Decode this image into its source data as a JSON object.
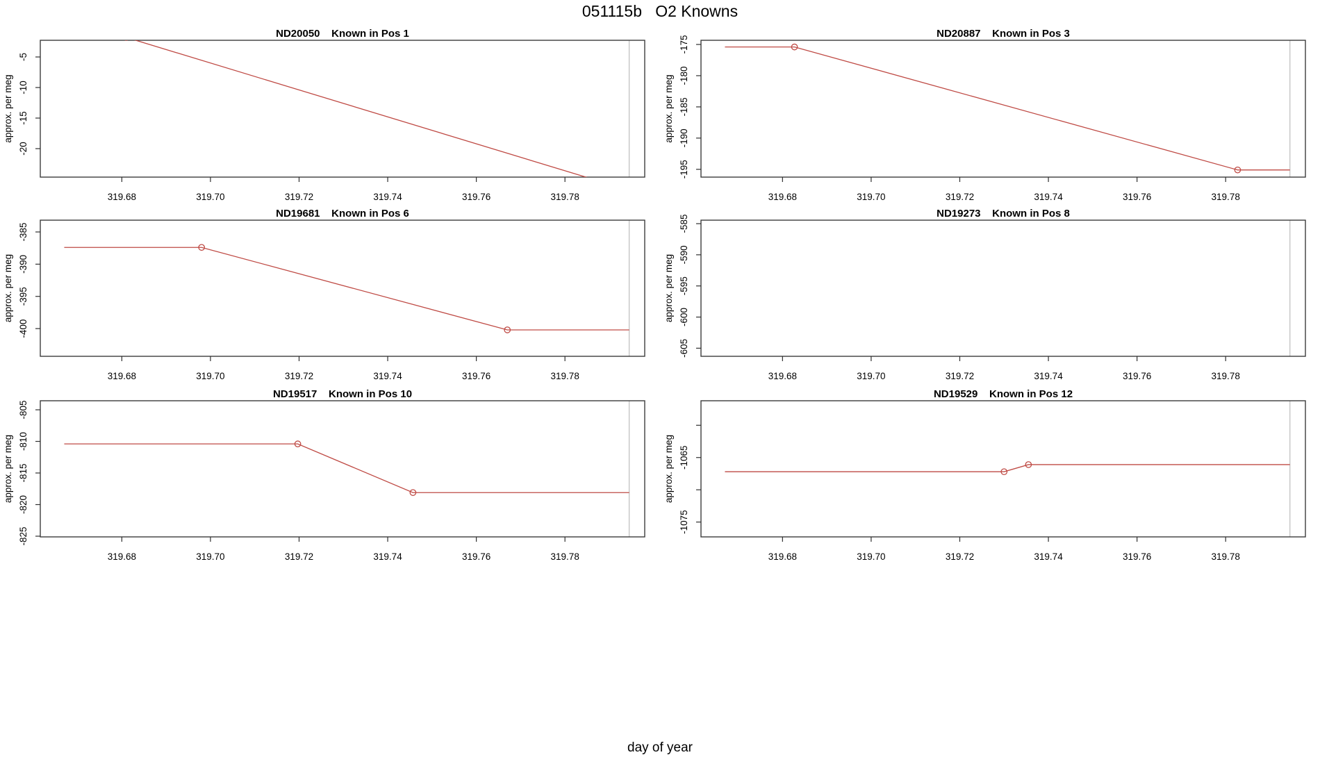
{
  "header": {
    "title": "051115b   O2 Knowns"
  },
  "footer": {
    "xlabel": "day of year"
  },
  "colors": {
    "line": "#bf4a44",
    "marker": "#bf4a44",
    "box": "#3b3b3b",
    "tick": "#2f2f2f",
    "end_line": "#c8c8c8",
    "text": "#000000",
    "background": "#ffffff"
  },
  "chart_data": [
    {
      "type": "line",
      "sample_id": "ND20050",
      "position": "Known in Pos 1",
      "title": "ND20050    Known in Pos 1",
      "ylabel": "approx. per meg",
      "xlim": [
        319.6616,
        319.798
      ],
      "ylim": [
        -24.66,
        -2.27
      ],
      "xticks": [
        319.68,
        319.7,
        319.72,
        319.74,
        319.76,
        319.78
      ],
      "xtick_labels": [
        "319.68",
        "319.70",
        "319.72",
        "319.74",
        "319.76",
        "319.78"
      ],
      "yticks": [
        -5,
        -10,
        -15,
        -20
      ],
      "ytick_labels": [
        "-5",
        "-10",
        "-15",
        "-20"
      ],
      "x": [
        319.667,
        319.681,
        319.789,
        319.7945
      ],
      "y": [
        -1.8,
        -1.8,
        -25.6,
        -25.6
      ],
      "marker_point_indices": [
        1,
        2
      ],
      "end_marker_x": 319.7945
    },
    {
      "type": "line",
      "sample_id": "ND20887",
      "position": "Known in Pos 3",
      "title": "ND20887    Known in Pos 3",
      "ylabel": "approx. per meg",
      "xlim": [
        319.6616,
        319.798
      ],
      "ylim": [
        -196.25,
        -174.33
      ],
      "xticks": [
        319.68,
        319.7,
        319.72,
        319.74,
        319.76,
        319.78
      ],
      "xtick_labels": [
        "319.68",
        "319.70",
        "319.72",
        "319.74",
        "319.76",
        "319.78"
      ],
      "yticks": [
        -175,
        -180,
        -185,
        -190,
        -195
      ],
      "ytick_labels": [
        "-175",
        "-180",
        "-185",
        "-190",
        "-195"
      ],
      "x": [
        319.667,
        319.6827,
        319.7827,
        319.7945
      ],
      "y": [
        -175.4,
        -175.4,
        -195.1,
        -195.1
      ],
      "marker_point_indices": [
        1,
        2
      ],
      "end_marker_x": 319.7945
    },
    {
      "type": "line",
      "sample_id": "ND19681",
      "position": "Known in Pos 6",
      "title": "ND19681    Known in Pos 6",
      "ylabel": "approx. per meg",
      "xlim": [
        319.6616,
        319.798
      ],
      "ylim": [
        -404.3,
        -383.17
      ],
      "xticks": [
        319.68,
        319.7,
        319.72,
        319.74,
        319.76,
        319.78
      ],
      "xtick_labels": [
        "319.68",
        "319.70",
        "319.72",
        "319.74",
        "319.76",
        "319.78"
      ],
      "yticks": [
        -385,
        -390,
        -395,
        -400
      ],
      "ytick_labels": [
        "-385",
        "-390",
        "-395",
        "-400"
      ],
      "x": [
        319.667,
        319.698,
        319.767,
        319.7945
      ],
      "y": [
        -387.4,
        -387.4,
        -400.2,
        -400.2
      ],
      "marker_point_indices": [
        1,
        2
      ],
      "end_marker_x": 319.7945
    },
    {
      "type": "line",
      "sample_id": "ND19273",
      "position": "Known in Pos 8",
      "title": "ND19273    Known in Pos 8",
      "ylabel": "approx. per meg",
      "xlim": [
        319.6616,
        319.798
      ],
      "ylim": [
        -606.3,
        -584.44
      ],
      "xticks": [
        319.68,
        319.7,
        319.72,
        319.74,
        319.76,
        319.78
      ],
      "xtick_labels": [
        "319.68",
        "319.70",
        "319.72",
        "319.74",
        "319.76",
        "319.78"
      ],
      "yticks": [
        -585,
        -590,
        -595,
        -600,
        -605
      ],
      "ytick_labels": [
        "-585",
        "-590",
        "-595",
        "-600",
        "-605"
      ],
      "x": [],
      "y": [],
      "marker_point_indices": [],
      "end_marker_x": 319.7945
    },
    {
      "type": "line",
      "sample_id": "ND19517",
      "position": "Known in Pos 10",
      "title": "ND19517    Known in Pos 10",
      "ylabel": "approx. per meg",
      "xlim": [
        319.6616,
        319.798
      ],
      "ylim": [
        -825.11,
        -803.57
      ],
      "xticks": [
        319.68,
        319.7,
        319.72,
        319.74,
        319.76,
        319.78
      ],
      "xtick_labels": [
        "319.68",
        "319.70",
        "319.72",
        "319.74",
        "319.76",
        "319.78"
      ],
      "yticks": [
        -805,
        -810,
        -815,
        -820,
        -825
      ],
      "ytick_labels": [
        "-805",
        "-810",
        "-815",
        "-820",
        "-825"
      ],
      "x": [
        319.667,
        319.7197,
        319.7457,
        319.7945
      ],
      "y": [
        -810.4,
        -810.4,
        -818.1,
        -818.1
      ],
      "marker_point_indices": [
        1,
        2
      ],
      "end_marker_x": 319.7945
    },
    {
      "type": "line",
      "sample_id": "ND19529",
      "position": "Known in Pos 12",
      "title": "ND19529    Known in Pos 12",
      "ylabel": "approx. per meg",
      "xlim": [
        319.6616,
        319.798
      ],
      "ylim": [
        -1077.3,
        -1056.2
      ],
      "xticks": [
        319.68,
        319.7,
        319.72,
        319.74,
        319.76,
        319.78
      ],
      "xtick_labels": [
        "319.68",
        "319.70",
        "319.72",
        "319.74",
        "319.76",
        "319.78"
      ],
      "yticks": [
        -1060,
        -1065,
        -1070,
        -1075
      ],
      "ytick_labels": [
        "",
        "-1065",
        "",
        "-1075"
      ],
      "x": [
        319.667,
        319.73,
        319.7355,
        319.7945
      ],
      "y": [
        -1067.2,
        -1067.2,
        -1066.1,
        -1066.1
      ],
      "marker_point_indices": [
        1,
        2
      ],
      "end_marker_x": 319.7945
    }
  ]
}
